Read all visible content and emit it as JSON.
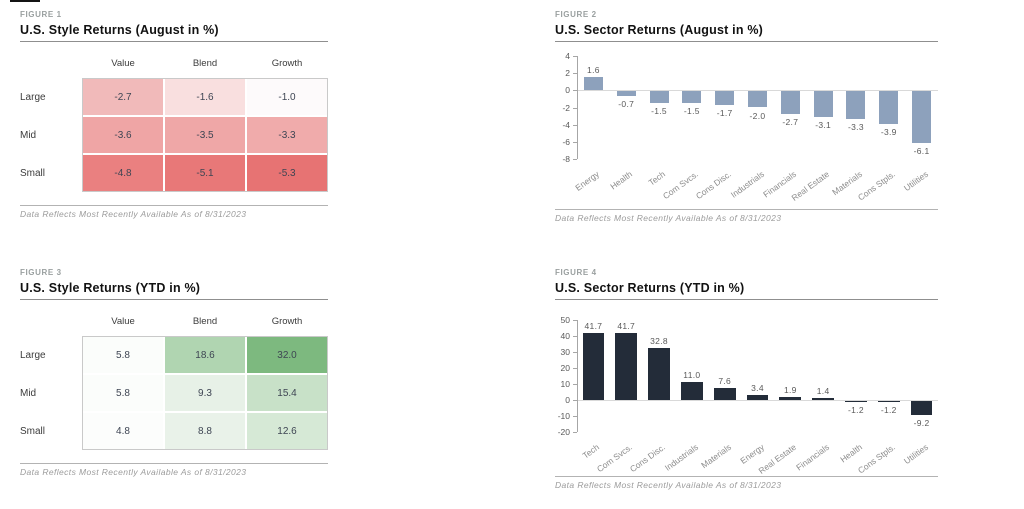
{
  "theme": {
    "background": "#ffffff",
    "figure_label_color": "#9aa0a0",
    "title_color": "#121212",
    "title_rule_color": "#8f8f8f",
    "footnote_color": "#9b9b9b"
  },
  "chart_data": [
    {
      "id": "figure1",
      "type": "heatmap",
      "figure_label": "FIGURE 1",
      "title": "U.S. Style Returns (August in %)",
      "columns": [
        "Value",
        "Blend",
        "Growth"
      ],
      "rows": [
        "Large",
        "Mid",
        "Small"
      ],
      "values": [
        [
          -2.7,
          -1.6,
          -1.0
        ],
        [
          -3.6,
          -3.5,
          -3.3
        ],
        [
          -4.8,
          -5.1,
          -5.3
        ]
      ],
      "value_labels": [
        [
          "-2.7",
          "-1.6",
          "-1.0"
        ],
        [
          "-3.6",
          "-3.5",
          "-3.3"
        ],
        [
          "-4.8",
          "-5.1",
          "-5.3"
        ]
      ],
      "cell_colors": [
        [
          "#f1baba",
          "#f9dfdf",
          "#fdfafb"
        ],
        [
          "#efa5a5",
          "#efa7a7",
          "#f0abab"
        ],
        [
          "#ea8080",
          "#e87878",
          "#e77373"
        ]
      ],
      "colors": {
        "border": "#c9c9c9",
        "value_text": "#3e4553"
      },
      "footnote": "Data Reflects Most Recently Available As of 8/31/2023"
    },
    {
      "id": "figure2",
      "type": "bar",
      "figure_label": "FIGURE 2",
      "title": "U.S. Sector Returns (August in %)",
      "categories": [
        "Energy",
        "Health",
        "Tech",
        "Com Svcs.",
        "Cons Disc.",
        "Industrials",
        "Financials",
        "Real Estate",
        "Materials",
        "Cons Stpls.",
        "Utilities"
      ],
      "values": [
        1.6,
        -0.7,
        -1.5,
        -1.5,
        -1.7,
        -2.0,
        -2.7,
        -3.1,
        -3.3,
        -3.9,
        -6.1
      ],
      "value_labels": [
        "1.6",
        "-0.7",
        "-1.5",
        "-1.5",
        "-1.7",
        "-2.0",
        "-2.7",
        "-3.1",
        "-3.3",
        "-3.9",
        "-6.1"
      ],
      "ylim": [
        -8,
        4
      ],
      "ytick_step": 2,
      "bar_width_ratio": 0.58,
      "grid": "zero-line only",
      "legend": "none",
      "colors": {
        "bar": "#8da1bc",
        "axis": "#a6a6a6",
        "zero_line": "#d9d9d9",
        "tick_label": "#595959",
        "value_label": "#595959",
        "category_label": "#8c8c8c"
      },
      "footnote": "Data Reflects Most Recently Available As of 8/31/2023"
    },
    {
      "id": "figure3",
      "type": "heatmap",
      "figure_label": "FIGURE 3",
      "title": "U.S. Style Returns (YTD in %)",
      "columns": [
        "Value",
        "Blend",
        "Growth"
      ],
      "rows": [
        "Large",
        "Mid",
        "Small"
      ],
      "values": [
        [
          5.8,
          18.6,
          32.0
        ],
        [
          5.8,
          9.3,
          15.4
        ],
        [
          4.8,
          8.8,
          12.6
        ]
      ],
      "value_labels": [
        [
          "5.8",
          "18.6",
          "32.0"
        ],
        [
          "5.8",
          "9.3",
          "15.4"
        ],
        [
          "4.8",
          "8.8",
          "12.6"
        ]
      ],
      "cell_colors": [
        [
          "#fbfdfb",
          "#b0d5b1",
          "#7db97f"
        ],
        [
          "#fbfdfb",
          "#e7f1e7",
          "#c8e1c8"
        ],
        [
          "#fcfdfc",
          "#e9f2e9",
          "#d6e9d6"
        ]
      ],
      "colors": {
        "border": "#c9c9c9",
        "value_text": "#3e4553"
      },
      "footnote": "Data Reflects Most Recently Available As of 8/31/2023"
    },
    {
      "id": "figure4",
      "type": "bar",
      "figure_label": "FIGURE 4",
      "title": "U.S. Sector Returns (YTD in %)",
      "categories": [
        "Tech",
        "Com Svcs.",
        "Cons Disc.",
        "Industrials",
        "Materials",
        "Energy",
        "Real Estate",
        "Financials",
        "Health",
        "Cons Stpls.",
        "Utilities"
      ],
      "values": [
        41.7,
        41.7,
        32.8,
        11.0,
        7.6,
        3.4,
        1.9,
        1.4,
        -1.2,
        -1.2,
        -9.2
      ],
      "value_labels": [
        "41.7",
        "41.7",
        "32.8",
        "11.0",
        "7.6",
        "3.4",
        "1.9",
        "1.4",
        "-1.2",
        "-1.2",
        "-9.2"
      ],
      "ylim": [
        -20,
        50
      ],
      "ytick_step": 10,
      "bar_width_ratio": 0.66,
      "grid": "zero-line only",
      "legend": "none",
      "colors": {
        "bar": "#232c39",
        "axis": "#a6a6a6",
        "zero_line": "#d9d9d9",
        "tick_label": "#595959",
        "value_label": "#595959",
        "category_label": "#8c8c8c"
      },
      "footnote": "Data Reflects Most Recently Available As of 8/31/2023"
    }
  ]
}
